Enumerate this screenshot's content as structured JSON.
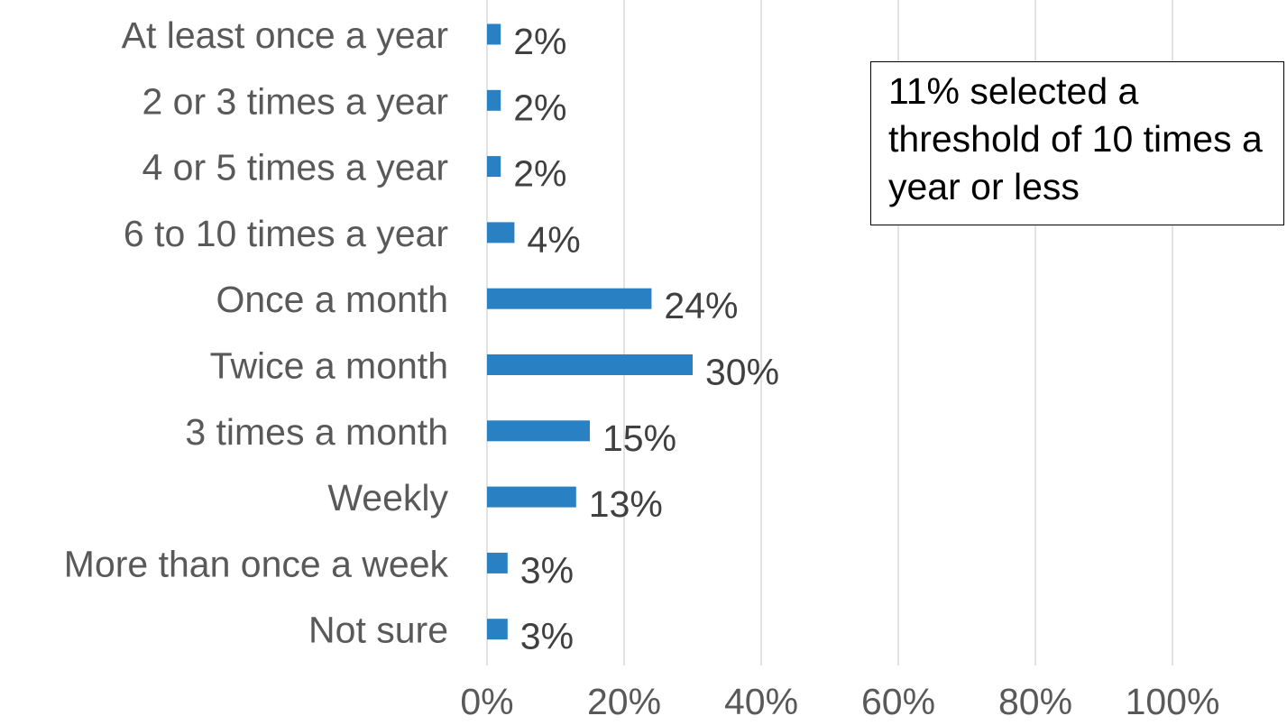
{
  "chart_data": {
    "type": "bar",
    "orientation": "horizontal",
    "categories": [
      "At least once a year",
      "2 or 3 times a year",
      "4 or 5 times a year",
      "6 to 10 times a year",
      "Once a month",
      "Twice a month",
      "3 times a month",
      "Weekly",
      "More than once a week",
      "Not sure"
    ],
    "values": [
      2,
      2,
      2,
      4,
      24,
      30,
      15,
      13,
      3,
      3
    ],
    "value_labels": [
      "2%",
      "2%",
      "2%",
      "4%",
      "24%",
      "30%",
      "15%",
      "13%",
      "3%",
      "3%"
    ],
    "xlim": [
      0,
      100
    ],
    "x_ticks": [
      0,
      20,
      40,
      60,
      80,
      100
    ],
    "x_tick_labels": [
      "0%",
      "20%",
      "40%",
      "60%",
      "80%",
      "100%"
    ],
    "grid": "vertical gridlines on",
    "legend": "none",
    "bar_color": "#2980C3",
    "gridline_color": "#D9D9D9",
    "annotation": "11% selected a threshold of 10 times a year or less"
  }
}
